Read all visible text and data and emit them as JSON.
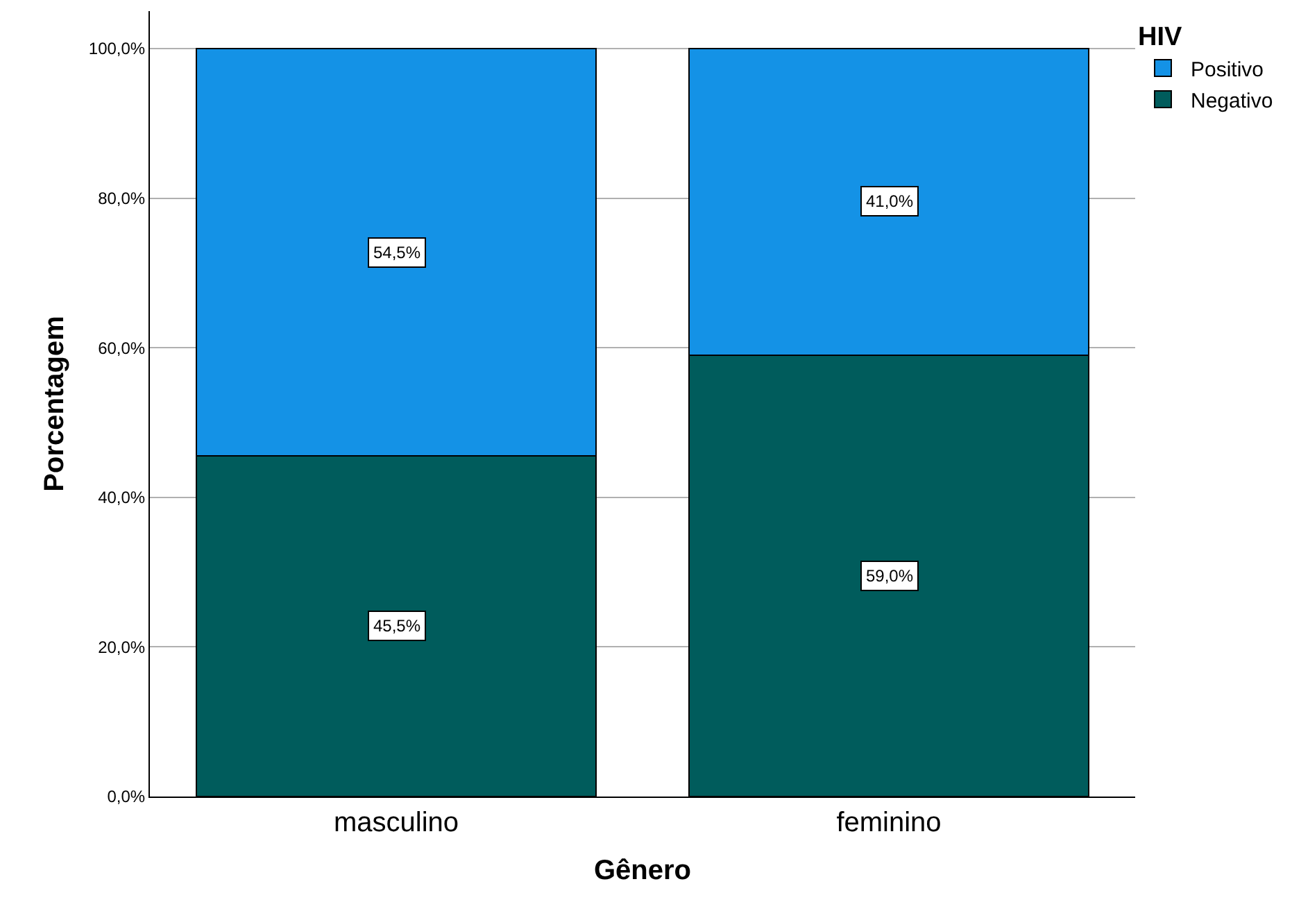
{
  "chart_data": {
    "type": "bar",
    "stacked": true,
    "xlabel": "Gênero",
    "ylabel": "Porcentagem",
    "legend_title": "HIV",
    "categories": [
      "masculino",
      "feminino"
    ],
    "series": [
      {
        "name": "Negativo",
        "color": "#005c5c",
        "values": [
          45.5,
          59.0
        ],
        "value_labels": [
          "45,5%",
          "59,0%"
        ]
      },
      {
        "name": "Positivo",
        "color": "#1492e6",
        "values": [
          54.5,
          41.0
        ],
        "value_labels": [
          "54,5%",
          "41,0%"
        ]
      }
    ],
    "ylim": [
      0,
      105
    ],
    "yticks": [
      {
        "value": 0,
        "label": "0,0%"
      },
      {
        "value": 20,
        "label": "20,0%"
      },
      {
        "value": 40,
        "label": "40,0%"
      },
      {
        "value": 60,
        "label": "60,0%"
      },
      {
        "value": 80,
        "label": "80,0%"
      },
      {
        "value": 100,
        "label": "100,0%"
      }
    ],
    "grid": "y",
    "legend": "top right"
  }
}
